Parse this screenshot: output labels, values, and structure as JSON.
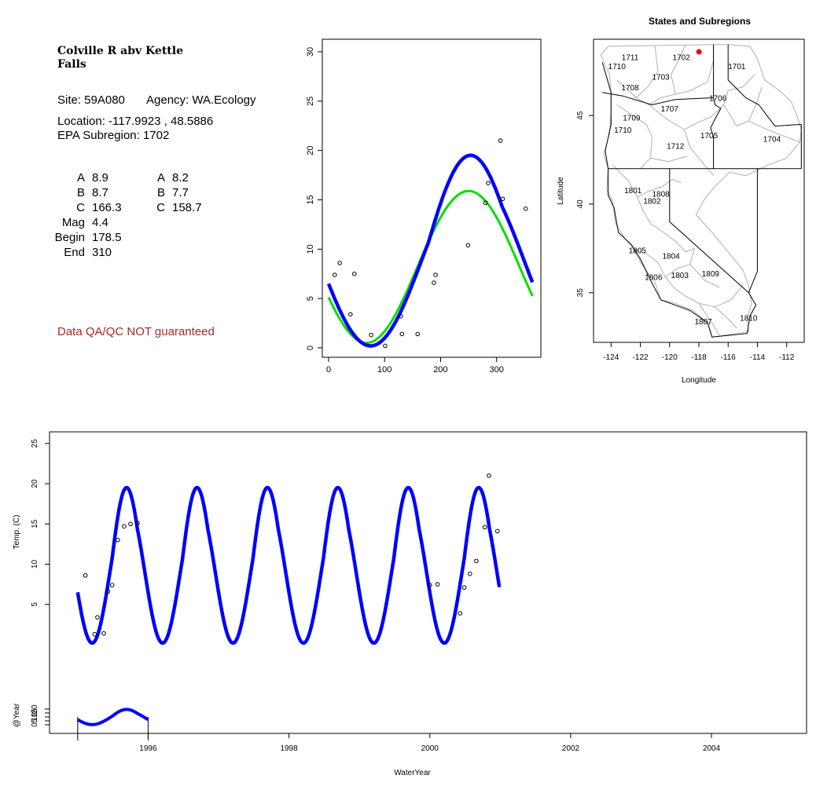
{
  "station": {
    "title_line1": "Colville R abv Kettle",
    "title_line2": "Falls",
    "site_label": "Site: 59A080",
    "agency_label": "Agency: WA.Ecology",
    "location_label": "Location: -117.9923 , 48.5886",
    "subregion_label": "EPA Subregion: 1702",
    "params_left": [
      {
        "key": "A",
        "value": "8.9"
      },
      {
        "key": "B",
        "value": "8.7"
      },
      {
        "key": "C",
        "value": "166.3"
      },
      {
        "key": "Mag",
        "value": "4.4"
      },
      {
        "key": "Begin",
        "value": "178.5"
      },
      {
        "key": "End",
        "value": "310"
      }
    ],
    "params_right": [
      {
        "key": "A",
        "value": "8.2"
      },
      {
        "key": "B",
        "value": "7.7"
      },
      {
        "key": "C",
        "value": "158.7"
      }
    ],
    "qa_note": "Data QA/QC NOT guaranteed"
  },
  "colors": {
    "fit_blue": "#0000ff",
    "fit_green": "#00e000",
    "site_marker": "#ff0000",
    "qa_text": "#a52a2a",
    "boundary_gray": "#b0b0b0"
  },
  "chart_data": [
    {
      "type": "scatter",
      "title": "",
      "xlabel": "",
      "ylabel": "",
      "xlim": [
        0,
        365
      ],
      "ylim": [
        0,
        30
      ],
      "xticks": [
        0,
        100,
        200,
        300
      ],
      "yticks": [
        0,
        5,
        10,
        15,
        20,
        25,
        30
      ],
      "points": [
        [
          11,
          7.4
        ],
        [
          20,
          8.6
        ],
        [
          39,
          3.4
        ],
        [
          46,
          7.5
        ],
        [
          76,
          1.3
        ],
        [
          101,
          0.2
        ],
        [
          129,
          3.2
        ],
        [
          131,
          1.4
        ],
        [
          159,
          1.4
        ],
        [
          188,
          6.6
        ],
        [
          191,
          7.4
        ],
        [
          249,
          10.4
        ],
        [
          280,
          14.7
        ],
        [
          285,
          16.7
        ],
        [
          307,
          21.0
        ],
        [
          311,
          15.1
        ],
        [
          352,
          14.1
        ]
      ],
      "series": [
        {
          "color_key": "fit_green",
          "A": 8.2,
          "B": 7.7,
          "C": 158.7
        },
        {
          "color_key": "fit_blue",
          "A": 8.9,
          "B": 8.7,
          "C": 166.3,
          "mag": 4.4,
          "begin": 178.5,
          "end": 310
        }
      ]
    },
    {
      "type": "map",
      "title": "States and Subregions",
      "xlabel": "Longitude",
      "ylabel": "Latitude",
      "xlim": [
        -125.2,
        -110.8
      ],
      "ylim": [
        32.2,
        49.3
      ],
      "xticks": [
        -124,
        -122,
        -120,
        -118,
        -116,
        -114,
        -112
      ],
      "yticks": [
        35,
        40,
        45
      ],
      "site": [
        -117.9923,
        48.5886
      ],
      "region_labels": [
        {
          "text": "1711",
          "lon": -122.7,
          "lat": 48.3
        },
        {
          "text": "1710",
          "lon": -123.6,
          "lat": 47.8
        },
        {
          "text": "1702",
          "lon": -119.2,
          "lat": 48.3
        },
        {
          "text": "1701",
          "lon": -115.4,
          "lat": 47.8
        },
        {
          "text": "1703",
          "lon": -120.6,
          "lat": 47.2
        },
        {
          "text": "1708",
          "lon": -122.7,
          "lat": 46.6
        },
        {
          "text": "1706",
          "lon": -116.7,
          "lat": 46.0
        },
        {
          "text": "1707",
          "lon": -120.0,
          "lat": 45.4
        },
        {
          "text": "1709",
          "lon": -122.6,
          "lat": 44.9
        },
        {
          "text": "1710",
          "lon": -123.2,
          "lat": 44.2
        },
        {
          "text": "1705",
          "lon": -117.3,
          "lat": 43.9
        },
        {
          "text": "1704",
          "lon": -113.0,
          "lat": 43.7
        },
        {
          "text": "1712",
          "lon": -119.6,
          "lat": 43.3
        },
        {
          "text": "1801",
          "lon": -122.5,
          "lat": 40.8
        },
        {
          "text": "1808",
          "lon": -120.6,
          "lat": 40.6
        },
        {
          "text": "1802",
          "lon": -121.2,
          "lat": 40.2
        },
        {
          "text": "1805",
          "lon": -122.2,
          "lat": 37.4
        },
        {
          "text": "1804",
          "lon": -119.9,
          "lat": 37.1
        },
        {
          "text": "1806",
          "lon": -121.1,
          "lat": 35.9
        },
        {
          "text": "1803",
          "lon": -119.3,
          "lat": 36.0
        },
        {
          "text": "1809",
          "lon": -117.2,
          "lat": 36.1
        },
        {
          "text": "1810",
          "lon": -114.6,
          "lat": 33.6
        },
        {
          "text": "1807",
          "lon": -117.7,
          "lat": 33.4
        }
      ]
    },
    {
      "type": "line",
      "title": "",
      "xlabel": "WaterYear",
      "ylabel": "Temp. (C)",
      "ylabel2": "@Year",
      "xlim": [
        1994.6,
        2005.35
      ],
      "ylim": [
        0,
        30
      ],
      "xticks": [
        1996,
        1998,
        2000,
        2002,
        2004
      ],
      "yticks": [
        5,
        10,
        15,
        20,
        25
      ],
      "yticks2": [
        0,
        5,
        10,
        15,
        20
      ],
      "fit_range": [
        1995.0,
        2001.0
      ],
      "inset_range": [
        1995.0,
        1996.0
      ],
      "points": [
        [
          1995.11,
          8.6
        ],
        [
          1995.24,
          1.3
        ],
        [
          1995.28,
          3.4
        ],
        [
          1995.37,
          1.4
        ],
        [
          1995.43,
          6.6
        ],
        [
          1995.49,
          7.4
        ],
        [
          1995.57,
          13.0
        ],
        [
          1995.66,
          14.7
        ],
        [
          1995.75,
          15.0
        ],
        [
          1995.85,
          15.1
        ],
        [
          2000.0,
          7.4
        ],
        [
          2000.11,
          7.5
        ],
        [
          2000.43,
          3.9
        ],
        [
          2000.49,
          7.1
        ],
        [
          2000.57,
          8.8
        ],
        [
          2000.66,
          10.4
        ],
        [
          2000.78,
          14.6
        ],
        [
          2000.84,
          21.0
        ],
        [
          2000.96,
          14.1
        ]
      ]
    }
  ]
}
